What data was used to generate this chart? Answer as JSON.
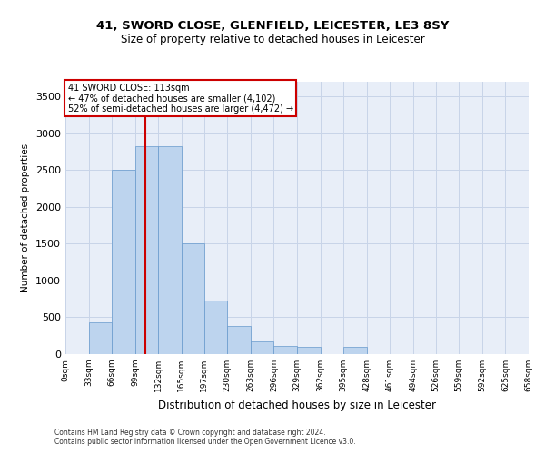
{
  "title1": "41, SWORD CLOSE, GLENFIELD, LEICESTER, LE3 8SY",
  "title2": "Size of property relative to detached houses in Leicester",
  "xlabel": "Distribution of detached houses by size in Leicester",
  "ylabel": "Number of detached properties",
  "footer1": "Contains HM Land Registry data © Crown copyright and database right 2024.",
  "footer2": "Contains public sector information licensed under the Open Government Licence v3.0.",
  "annotation_line1": "41 SWORD CLOSE: 113sqm",
  "annotation_line2": "← 47% of detached houses are smaller (4,102)",
  "annotation_line3": "52% of semi-detached houses are larger (4,472) →",
  "bar_color": "#bdd4ee",
  "bar_edge_color": "#6699cc",
  "grid_color": "#c8d4e8",
  "annotation_line_color": "#cc0000",
  "annotation_box_edgecolor": "#cc0000",
  "property_line_x": 113,
  "ylim": [
    0,
    3700
  ],
  "yticks": [
    0,
    500,
    1000,
    1500,
    2000,
    2500,
    3000,
    3500
  ],
  "bin_edges": [
    0,
    33,
    66,
    99,
    132,
    165,
    197,
    230,
    263,
    296,
    329,
    362,
    395,
    428,
    461,
    494,
    526,
    559,
    592,
    625,
    658
  ],
  "bar_heights": [
    5,
    430,
    2500,
    2820,
    2820,
    1510,
    730,
    385,
    170,
    115,
    95,
    5,
    95,
    5,
    5,
    5,
    5,
    5,
    5,
    5
  ],
  "bg_color": "#e8eef8",
  "title1_fontsize": 9.5,
  "title2_fontsize": 8.5,
  "ylabel_fontsize": 7.5,
  "xlabel_fontsize": 8.5,
  "ytick_fontsize": 8,
  "xtick_fontsize": 6.5,
  "footer_fontsize": 5.5
}
